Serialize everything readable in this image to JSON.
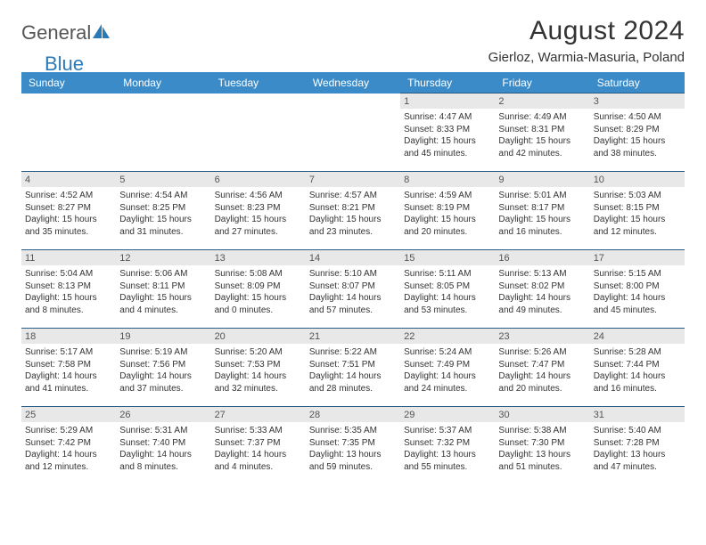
{
  "logo": {
    "text1": "General",
    "text2": "Blue"
  },
  "title": {
    "month": "August 2024",
    "location": "Gierloz, Warmia-Masuria, Poland"
  },
  "colors": {
    "header_bg": "#3b8bc9",
    "header_text": "#ffffff",
    "daynum_bg": "#e8e8e8",
    "border": "#2a5b82",
    "logo_blue": "#2a7ab8"
  },
  "days_of_week": [
    "Sunday",
    "Monday",
    "Tuesday",
    "Wednesday",
    "Thursday",
    "Friday",
    "Saturday"
  ],
  "weeks": [
    [
      null,
      null,
      null,
      null,
      {
        "n": "1",
        "sunrise": "Sunrise: 4:47 AM",
        "sunset": "Sunset: 8:33 PM",
        "day1": "Daylight: 15 hours",
        "day2": "and 45 minutes."
      },
      {
        "n": "2",
        "sunrise": "Sunrise: 4:49 AM",
        "sunset": "Sunset: 8:31 PM",
        "day1": "Daylight: 15 hours",
        "day2": "and 42 minutes."
      },
      {
        "n": "3",
        "sunrise": "Sunrise: 4:50 AM",
        "sunset": "Sunset: 8:29 PM",
        "day1": "Daylight: 15 hours",
        "day2": "and 38 minutes."
      }
    ],
    [
      {
        "n": "4",
        "sunrise": "Sunrise: 4:52 AM",
        "sunset": "Sunset: 8:27 PM",
        "day1": "Daylight: 15 hours",
        "day2": "and 35 minutes."
      },
      {
        "n": "5",
        "sunrise": "Sunrise: 4:54 AM",
        "sunset": "Sunset: 8:25 PM",
        "day1": "Daylight: 15 hours",
        "day2": "and 31 minutes."
      },
      {
        "n": "6",
        "sunrise": "Sunrise: 4:56 AM",
        "sunset": "Sunset: 8:23 PM",
        "day1": "Daylight: 15 hours",
        "day2": "and 27 minutes."
      },
      {
        "n": "7",
        "sunrise": "Sunrise: 4:57 AM",
        "sunset": "Sunset: 8:21 PM",
        "day1": "Daylight: 15 hours",
        "day2": "and 23 minutes."
      },
      {
        "n": "8",
        "sunrise": "Sunrise: 4:59 AM",
        "sunset": "Sunset: 8:19 PM",
        "day1": "Daylight: 15 hours",
        "day2": "and 20 minutes."
      },
      {
        "n": "9",
        "sunrise": "Sunrise: 5:01 AM",
        "sunset": "Sunset: 8:17 PM",
        "day1": "Daylight: 15 hours",
        "day2": "and 16 minutes."
      },
      {
        "n": "10",
        "sunrise": "Sunrise: 5:03 AM",
        "sunset": "Sunset: 8:15 PM",
        "day1": "Daylight: 15 hours",
        "day2": "and 12 minutes."
      }
    ],
    [
      {
        "n": "11",
        "sunrise": "Sunrise: 5:04 AM",
        "sunset": "Sunset: 8:13 PM",
        "day1": "Daylight: 15 hours",
        "day2": "and 8 minutes."
      },
      {
        "n": "12",
        "sunrise": "Sunrise: 5:06 AM",
        "sunset": "Sunset: 8:11 PM",
        "day1": "Daylight: 15 hours",
        "day2": "and 4 minutes."
      },
      {
        "n": "13",
        "sunrise": "Sunrise: 5:08 AM",
        "sunset": "Sunset: 8:09 PM",
        "day1": "Daylight: 15 hours",
        "day2": "and 0 minutes."
      },
      {
        "n": "14",
        "sunrise": "Sunrise: 5:10 AM",
        "sunset": "Sunset: 8:07 PM",
        "day1": "Daylight: 14 hours",
        "day2": "and 57 minutes."
      },
      {
        "n": "15",
        "sunrise": "Sunrise: 5:11 AM",
        "sunset": "Sunset: 8:05 PM",
        "day1": "Daylight: 14 hours",
        "day2": "and 53 minutes."
      },
      {
        "n": "16",
        "sunrise": "Sunrise: 5:13 AM",
        "sunset": "Sunset: 8:02 PM",
        "day1": "Daylight: 14 hours",
        "day2": "and 49 minutes."
      },
      {
        "n": "17",
        "sunrise": "Sunrise: 5:15 AM",
        "sunset": "Sunset: 8:00 PM",
        "day1": "Daylight: 14 hours",
        "day2": "and 45 minutes."
      }
    ],
    [
      {
        "n": "18",
        "sunrise": "Sunrise: 5:17 AM",
        "sunset": "Sunset: 7:58 PM",
        "day1": "Daylight: 14 hours",
        "day2": "and 41 minutes."
      },
      {
        "n": "19",
        "sunrise": "Sunrise: 5:19 AM",
        "sunset": "Sunset: 7:56 PM",
        "day1": "Daylight: 14 hours",
        "day2": "and 37 minutes."
      },
      {
        "n": "20",
        "sunrise": "Sunrise: 5:20 AM",
        "sunset": "Sunset: 7:53 PM",
        "day1": "Daylight: 14 hours",
        "day2": "and 32 minutes."
      },
      {
        "n": "21",
        "sunrise": "Sunrise: 5:22 AM",
        "sunset": "Sunset: 7:51 PM",
        "day1": "Daylight: 14 hours",
        "day2": "and 28 minutes."
      },
      {
        "n": "22",
        "sunrise": "Sunrise: 5:24 AM",
        "sunset": "Sunset: 7:49 PM",
        "day1": "Daylight: 14 hours",
        "day2": "and 24 minutes."
      },
      {
        "n": "23",
        "sunrise": "Sunrise: 5:26 AM",
        "sunset": "Sunset: 7:47 PM",
        "day1": "Daylight: 14 hours",
        "day2": "and 20 minutes."
      },
      {
        "n": "24",
        "sunrise": "Sunrise: 5:28 AM",
        "sunset": "Sunset: 7:44 PM",
        "day1": "Daylight: 14 hours",
        "day2": "and 16 minutes."
      }
    ],
    [
      {
        "n": "25",
        "sunrise": "Sunrise: 5:29 AM",
        "sunset": "Sunset: 7:42 PM",
        "day1": "Daylight: 14 hours",
        "day2": "and 12 minutes."
      },
      {
        "n": "26",
        "sunrise": "Sunrise: 5:31 AM",
        "sunset": "Sunset: 7:40 PM",
        "day1": "Daylight: 14 hours",
        "day2": "and 8 minutes."
      },
      {
        "n": "27",
        "sunrise": "Sunrise: 5:33 AM",
        "sunset": "Sunset: 7:37 PM",
        "day1": "Daylight: 14 hours",
        "day2": "and 4 minutes."
      },
      {
        "n": "28",
        "sunrise": "Sunrise: 5:35 AM",
        "sunset": "Sunset: 7:35 PM",
        "day1": "Daylight: 13 hours",
        "day2": "and 59 minutes."
      },
      {
        "n": "29",
        "sunrise": "Sunrise: 5:37 AM",
        "sunset": "Sunset: 7:32 PM",
        "day1": "Daylight: 13 hours",
        "day2": "and 55 minutes."
      },
      {
        "n": "30",
        "sunrise": "Sunrise: 5:38 AM",
        "sunset": "Sunset: 7:30 PM",
        "day1": "Daylight: 13 hours",
        "day2": "and 51 minutes."
      },
      {
        "n": "31",
        "sunrise": "Sunrise: 5:40 AM",
        "sunset": "Sunset: 7:28 PM",
        "day1": "Daylight: 13 hours",
        "day2": "and 47 minutes."
      }
    ]
  ]
}
